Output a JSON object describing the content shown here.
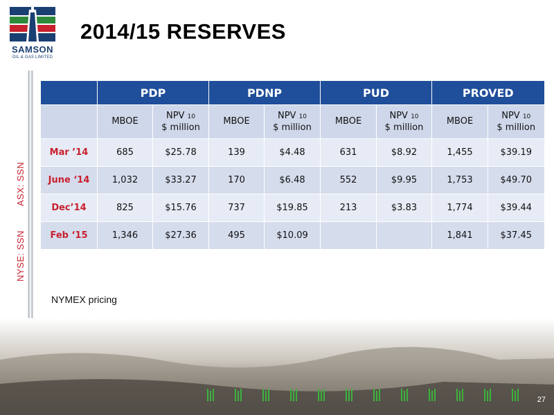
{
  "logo": {
    "name": "SAMSON",
    "sub": "OIL & GAS LIMITED"
  },
  "title": "2014/15 RESERVES",
  "side_labels": {
    "asx": "ASX: SSN",
    "nyse": "NYSE: SSN"
  },
  "table": {
    "groups": [
      "PDP",
      "PDNP",
      "PUD",
      "PROVED"
    ],
    "sub_headers": [
      {
        "mboe": "MBOE",
        "npv": "NPV",
        "npv_sub": "10",
        "npv_unit": "$ million"
      },
      {
        "mboe": "MBOE",
        "npv": "NPV",
        "npv_sub": "10",
        "npv_unit": "$ million"
      },
      {
        "mboe": "MBOE",
        "npv": "NPV",
        "npv_sub": "10",
        "npv_unit": "$ million"
      },
      {
        "mboe": "MBOE",
        "npv": "NPV",
        "npv_sub": "10",
        "npv_unit": "$ million"
      }
    ],
    "rows": [
      {
        "label": "Mar ’14",
        "values": [
          "685",
          "$25.78",
          "139",
          "$4.48",
          "631",
          "$8.92",
          "1,455",
          "$39.19"
        ]
      },
      {
        "label": "June ‘14",
        "values": [
          "1,032",
          "$33.27",
          "170",
          "$6.48",
          "552",
          "$9.95",
          "1,753",
          "$49.70"
        ]
      },
      {
        "label": "Dec’14",
        "values": [
          "825",
          "$15.76",
          "737",
          "$19.85",
          "213",
          "$3.83",
          "1,774",
          "$39.44"
        ]
      },
      {
        "label": "Feb ‘15",
        "values": [
          "1,346",
          "$27.36",
          "495",
          "$10.09",
          "",
          "",
          "1,841",
          "$37.45"
        ]
      }
    ]
  },
  "note": "NYMEX pricing",
  "page_number": "27",
  "colors": {
    "header_blue": "#1f4e9a",
    "label_red": "#c8202e"
  }
}
